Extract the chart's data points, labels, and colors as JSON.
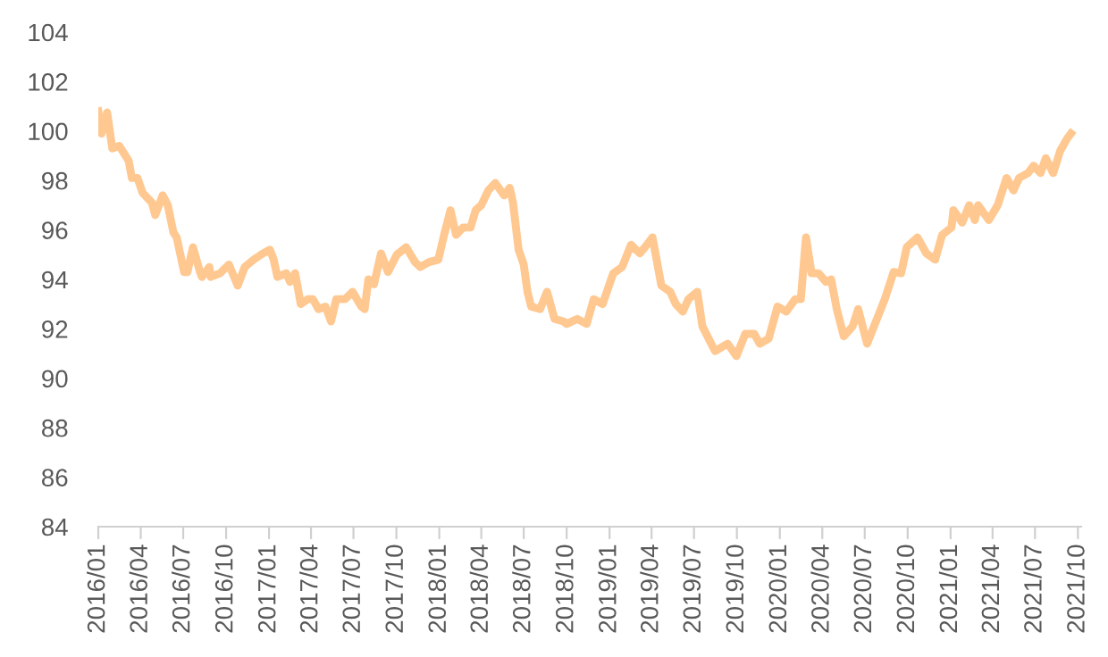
{
  "chart_data": {
    "type": "line",
    "color": "#ffc891",
    "grid": false,
    "marker": "none",
    "line_style": "solid",
    "x": [
      "2016-01-01",
      "2016-01-08",
      "2016-01-20",
      "2016-01-31",
      "2016-02-15",
      "2016-03-06",
      "2016-03-13",
      "2016-03-25",
      "2016-04-05",
      "2016-04-25",
      "2016-05-02",
      "2016-05-18",
      "2016-05-29",
      "2016-06-10",
      "2016-06-17",
      "2016-07-03",
      "2016-07-10",
      "2016-07-22",
      "2016-08-06",
      "2016-08-10",
      "2016-08-26",
      "2016-08-29",
      "2016-09-18",
      "2016-10-07",
      "2016-10-26",
      "2016-11-10",
      "2016-11-29",
      "2016-12-19",
      "2017-01-03",
      "2017-01-11",
      "2017-01-19",
      "2017-02-07",
      "2017-02-15",
      "2017-02-26",
      "2017-03-10",
      "2017-03-25",
      "2017-04-05",
      "2017-04-17",
      "2017-05-02",
      "2017-05-14",
      "2017-05-25",
      "2017-06-13",
      "2017-06-29",
      "2017-07-18",
      "2017-07-25",
      "2017-08-02",
      "2017-08-14",
      "2017-08-29",
      "2017-09-13",
      "2017-10-02",
      "2017-10-22",
      "2017-11-10",
      "2017-11-21",
      "2017-12-10",
      "2017-12-30",
      "2018-01-10",
      "2018-01-25",
      "2018-02-06",
      "2018-02-21",
      "2018-03-09",
      "2018-03-20",
      "2018-04-01",
      "2018-04-16",
      "2018-05-01",
      "2018-05-20",
      "2018-06-01",
      "2018-06-08",
      "2018-06-20",
      "2018-07-01",
      "2018-07-09",
      "2018-07-17",
      "2018-08-05",
      "2018-08-20",
      "2018-09-05",
      "2018-09-24",
      "2018-10-01",
      "2018-10-24",
      "2018-11-13",
      "2018-11-28",
      "2018-12-17",
      "2019-01-09",
      "2019-01-28",
      "2019-02-16",
      "2019-03-07",
      "2019-03-22",
      "2019-04-03",
      "2019-04-22",
      "2019-05-11",
      "2019-05-23",
      "2019-06-07",
      "2019-06-19",
      "2019-07-08",
      "2019-07-19",
      "2019-08-15",
      "2019-09-11",
      "2019-09-30",
      "2019-10-19",
      "2019-11-07",
      "2019-11-19",
      "2019-12-08",
      "2019-12-27",
      "2020-01-15",
      "2020-02-03",
      "2020-02-15",
      "2020-02-26",
      "2020-03-09",
      "2020-03-24",
      "2020-04-09",
      "2020-04-20",
      "2020-05-02",
      "2020-05-17",
      "2020-06-05",
      "2020-06-17",
      "2020-07-06",
      "2020-07-25",
      "2020-08-13",
      "2020-09-01",
      "2020-09-17",
      "2020-09-29",
      "2020-10-22",
      "2020-11-10",
      "2020-11-29",
      "2020-12-14",
      "2021-01-03",
      "2021-01-07",
      "2021-01-26",
      "2021-02-10",
      "2021-02-22",
      "2021-03-01",
      "2021-03-24",
      "2021-04-12",
      "2021-05-01",
      "2021-05-16",
      "2021-05-28",
      "2021-06-16",
      "2021-06-28",
      "2021-07-13",
      "2021-07-24",
      "2021-08-09",
      "2021-08-24",
      "2021-09-08",
      "2021-09-16"
    ],
    "values": [
      100.8,
      99.9,
      100.75,
      99.3,
      99.4,
      98.8,
      98.1,
      98.1,
      97.5,
      97.1,
      96.6,
      97.4,
      97.0,
      95.9,
      95.7,
      94.3,
      94.3,
      95.3,
      94.3,
      94.1,
      94.5,
      94.1,
      94.25,
      94.6,
      93.75,
      94.5,
      94.8,
      95.05,
      95.2,
      94.8,
      94.1,
      94.25,
      93.9,
      94.25,
      93.0,
      93.2,
      93.2,
      92.8,
      92.9,
      92.3,
      93.2,
      93.2,
      93.5,
      92.9,
      92.8,
      94.0,
      93.8,
      95.05,
      94.3,
      95.0,
      95.3,
      94.7,
      94.5,
      94.7,
      94.8,
      95.7,
      96.8,
      95.8,
      96.1,
      96.1,
      96.8,
      97.0,
      97.6,
      97.9,
      97.4,
      97.7,
      97.1,
      95.2,
      94.6,
      93.5,
      92.9,
      92.8,
      93.5,
      92.4,
      92.3,
      92.2,
      92.4,
      92.2,
      93.2,
      93.0,
      94.25,
      94.5,
      95.4,
      95.05,
      95.4,
      95.7,
      93.75,
      93.5,
      93.0,
      92.7,
      93.2,
      93.5,
      92.1,
      91.1,
      91.4,
      90.9,
      91.8,
      91.8,
      91.4,
      91.6,
      92.9,
      92.7,
      93.2,
      93.2,
      95.7,
      94.25,
      94.25,
      93.9,
      94.0,
      92.8,
      91.7,
      92.1,
      92.8,
      91.4,
      92.3,
      93.2,
      94.3,
      94.25,
      95.3,
      95.7,
      95.05,
      94.8,
      95.8,
      96.1,
      96.8,
      96.3,
      97.0,
      96.4,
      97.0,
      96.4,
      97.0,
      98.1,
      97.6,
      98.1,
      98.3,
      98.6,
      98.3,
      98.9,
      98.3,
      99.2,
      99.7,
      99.9
    ],
    "xlim": [
      "2016-01-01",
      "2021-10-08"
    ],
    "xticks": [
      {
        "value": "2016-01-01",
        "label": "2016/01"
      },
      {
        "value": "2016-04-01",
        "label": "2016/04"
      },
      {
        "value": "2016-07-01",
        "label": "2016/07"
      },
      {
        "value": "2016-10-01",
        "label": "2016/10"
      },
      {
        "value": "2017-01-01",
        "label": "2017/01"
      },
      {
        "value": "2017-04-01",
        "label": "2017/04"
      },
      {
        "value": "2017-07-01",
        "label": "2017/07"
      },
      {
        "value": "2017-10-01",
        "label": "2017/10"
      },
      {
        "value": "2018-01-01",
        "label": "2018/01"
      },
      {
        "value": "2018-04-01",
        "label": "2018/04"
      },
      {
        "value": "2018-07-01",
        "label": "2018/07"
      },
      {
        "value": "2018-10-01",
        "label": "2018/10"
      },
      {
        "value": "2019-01-01",
        "label": "2019/01"
      },
      {
        "value": "2019-04-01",
        "label": "2019/04"
      },
      {
        "value": "2019-07-01",
        "label": "2019/07"
      },
      {
        "value": "2019-10-01",
        "label": "2019/10"
      },
      {
        "value": "2020-01-01",
        "label": "2020/01"
      },
      {
        "value": "2020-04-01",
        "label": "2020/04"
      },
      {
        "value": "2020-07-01",
        "label": "2020/07"
      },
      {
        "value": "2020-10-01",
        "label": "2020/10"
      },
      {
        "value": "2021-01-01",
        "label": "2021/01"
      },
      {
        "value": "2021-04-01",
        "label": "2021/04"
      },
      {
        "value": "2021-07-01",
        "label": "2021/07"
      },
      {
        "value": "2021-10-01",
        "label": "2021/10"
      }
    ],
    "ylim": [
      84,
      104
    ],
    "yticks": [
      84,
      86,
      88,
      90,
      92,
      94,
      96,
      98,
      100,
      102,
      104
    ]
  }
}
